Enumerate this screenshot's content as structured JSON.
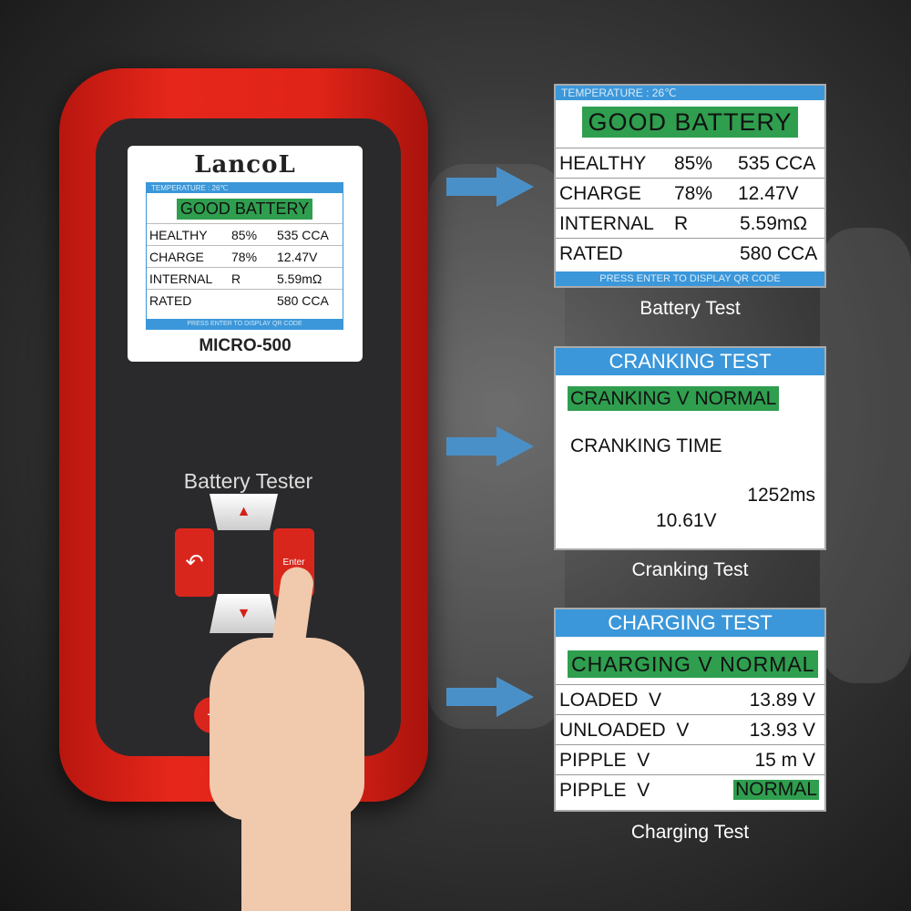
{
  "device": {
    "brand": "LancoL",
    "model": "MICRO-500",
    "label": "Battery Tester",
    "enter_label": "Enter",
    "screen": {
      "temperature": "TEMPERATURE : 26℃",
      "status": "GOOD BATTERY",
      "rows": [
        [
          "HEALTHY",
          "85%",
          "535 CCA"
        ],
        [
          "CHARGE",
          "78%",
          "12.47V"
        ],
        [
          "INTERNAL",
          "R",
          "5.59mΩ"
        ],
        [
          "RATED",
          "",
          "580 CCA"
        ]
      ],
      "footer": "PRESS ENTER TO DISPLAY QR CODE"
    }
  },
  "battery_test": {
    "temperature": "TEMPERATURE : 26℃",
    "status": "GOOD BATTERY",
    "rows": [
      [
        "HEALTHY",
        "85%",
        "535 CCA"
      ],
      [
        "CHARGE",
        "78%",
        "12.47V"
      ],
      [
        "INTERNAL",
        "R",
        "5.59mΩ"
      ],
      [
        "RATED",
        "",
        "580 CCA"
      ]
    ],
    "footer": "PRESS ENTER TO DISPLAY QR CODE",
    "caption": "Battery Test"
  },
  "cranking_test": {
    "title": "CRANKING TEST",
    "status": "CRANKING V NORMAL",
    "time_label": "CRANKING TIME",
    "time": "1252ms",
    "voltage": "10.61V",
    "caption": "Cranking Test"
  },
  "charging_test": {
    "title": "CHARGING TEST",
    "status": "CHARGING V NORMAL",
    "rows": [
      [
        "LOADED  V",
        "13.89 V"
      ],
      [
        "UNLOADED  V",
        "13.93 V"
      ],
      [
        "PIPPLE  V",
        "15 m V"
      ],
      [
        "PIPPLE  V",
        "NORMAL"
      ]
    ],
    "caption": "Charging Test"
  },
  "colors": {
    "device_red": "#e02418",
    "header_blue": "#3b97d9",
    "status_green": "#2f9e4f",
    "arrow_blue": "#4a90c8"
  }
}
